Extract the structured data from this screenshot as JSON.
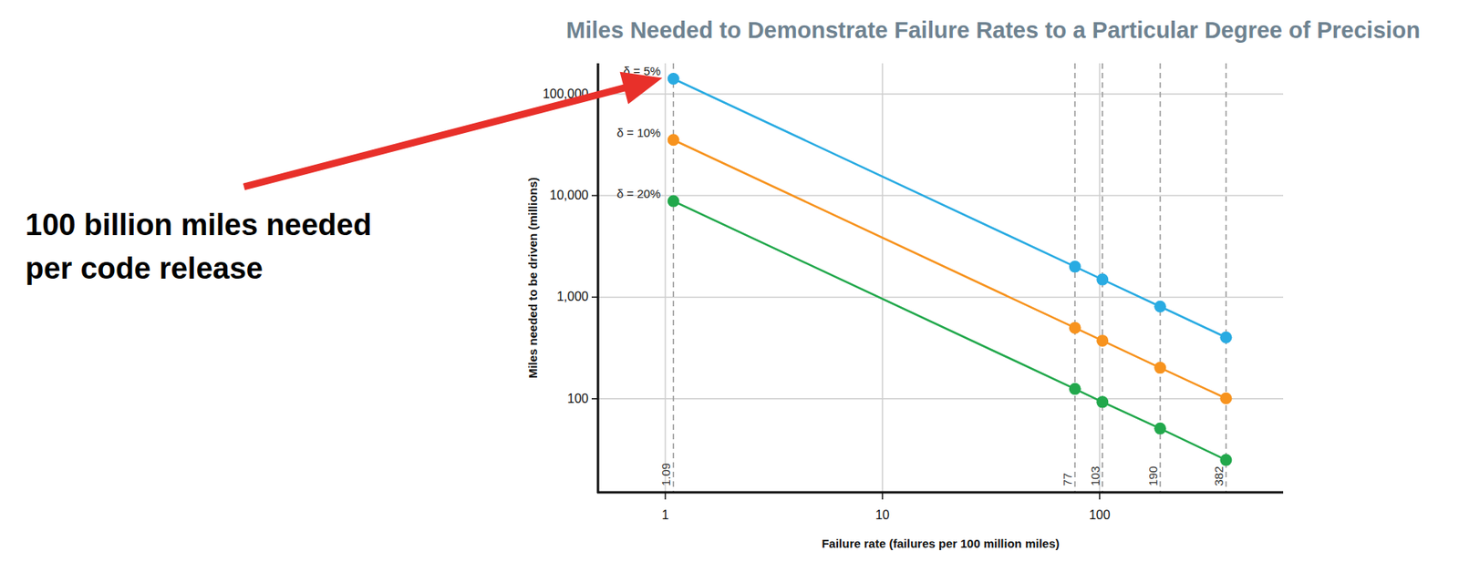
{
  "chart_data": {
    "type": "line",
    "title": "Miles Needed to Demonstrate Failure Rates to a Particular Degree of Precision",
    "x_label": "Failure rate (failures per 100 million miles)",
    "y_label": "Miles needed to be driven (millions)",
    "annotation": [
      "100 billion miles needed",
      "per code release"
    ],
    "x": [
      1.09,
      77,
      103,
      190,
      382
    ],
    "series": [
      {
        "name": "δ = 5%",
        "color": "#29abe2",
        "marker": "circle",
        "values": [
          141000,
          1996,
          1492,
          809,
          402
        ]
      },
      {
        "name": "δ = 10%",
        "color": "#f7931e",
        "marker": "circle",
        "values": [
          35300,
          499,
          373,
          202,
          101
        ]
      },
      {
        "name": "δ = 20%",
        "color": "#22a84c",
        "marker": "circle",
        "values": [
          8810,
          125,
          93,
          51,
          25
        ]
      }
    ],
    "xlim": [
      0.49,
      700
    ],
    "ylim": [
      12,
      200000
    ],
    "xticks": [
      1,
      10,
      100
    ],
    "yticks": [
      100,
      {
        "value": 1000,
        "label": "1,000"
      },
      {
        "value": 10000,
        "label": "10,000"
      },
      {
        "value": 100000,
        "label": "100,000"
      }
    ],
    "log": true,
    "grid": true
  }
}
